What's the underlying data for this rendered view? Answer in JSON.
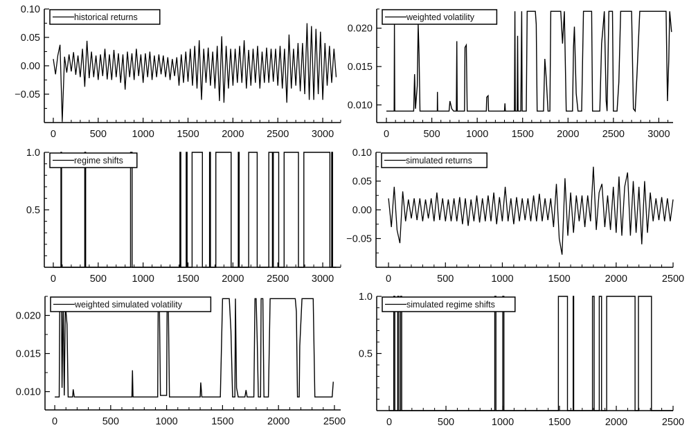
{
  "figure": {
    "line_color": "#000000",
    "background": "#ffffff"
  },
  "chart_data": [
    {
      "type": "line",
      "legend": "historical returns",
      "legend_position": "top-left",
      "xlim": [
        -100,
        3200
      ],
      "ylim": [
        -0.1,
        0.1
      ],
      "xticks": [
        0,
        500,
        1000,
        1500,
        2000,
        2500,
        3000
      ],
      "xtick_labels": [
        "0",
        "500",
        "1000",
        "1500",
        "2000",
        "2500",
        "3000"
      ],
      "x_minor_step": 100,
      "yticks": [
        0.1,
        0.05,
        0.0,
        -0.05
      ],
      "ytick_labels": [
        "0.10",
        "0.05",
        "0.00",
        "−0.05"
      ],
      "y_minor_step": 0.025,
      "grid": false,
      "x_step": 25,
      "values": [
        0.012,
        -0.015,
        0.018,
        0.037,
        -0.098,
        0.016,
        -0.012,
        0.02,
        -0.01,
        0.024,
        -0.016,
        0.018,
        -0.02,
        0.03,
        -0.037,
        0.044,
        -0.022,
        0.025,
        -0.02,
        0.018,
        -0.025,
        0.02,
        -0.018,
        0.03,
        -0.024,
        0.02,
        -0.025,
        0.028,
        -0.02,
        0.022,
        -0.03,
        0.02,
        -0.042,
        0.025,
        -0.02,
        0.022,
        -0.025,
        0.03,
        -0.018,
        0.02,
        -0.03,
        0.022,
        -0.02,
        0.025,
        -0.025,
        0.018,
        -0.02,
        0.02,
        -0.015,
        0.018,
        -0.02,
        0.015,
        -0.025,
        0.012,
        -0.018,
        0.015,
        -0.035,
        0.02,
        -0.03,
        0.025,
        -0.028,
        0.03,
        -0.035,
        0.035,
        -0.04,
        0.045,
        -0.06,
        0.03,
        -0.03,
        0.032,
        -0.035,
        0.025,
        -0.04,
        0.035,
        -0.062,
        0.052,
        -0.065,
        0.035,
        -0.04,
        0.03,
        -0.035,
        0.03,
        -0.03,
        0.035,
        -0.03,
        0.045,
        -0.04,
        0.028,
        -0.035,
        0.03,
        -0.03,
        0.035,
        -0.04,
        0.025,
        -0.03,
        0.032,
        -0.03,
        0.03,
        -0.028,
        0.03,
        -0.035,
        0.035,
        -0.04,
        0.03,
        -0.065,
        0.055,
        -0.04,
        0.03,
        -0.035,
        0.04,
        -0.045,
        0.04,
        -0.05,
        0.075,
        -0.06,
        0.07,
        -0.06,
        0.065,
        -0.05,
        0.06,
        -0.06,
        0.04,
        -0.035,
        0.035,
        -0.03,
        0.03,
        -0.02
      ]
    },
    {
      "type": "line",
      "legend": "weighted volatility",
      "legend_position": "top-left",
      "xlim": [
        -107,
        3157
      ],
      "ylim": [
        0.0077,
        0.0225
      ],
      "xticks": [
        0,
        500,
        1000,
        1500,
        2000,
        2500,
        3000
      ],
      "xtick_labels": [
        "0",
        "500",
        "1000",
        "1500",
        "2000",
        "2500",
        "3000"
      ],
      "x_minor_step": 100,
      "yticks": [
        0.02,
        0.015,
        0.01
      ],
      "ytick_labels": [
        "0.020",
        "0.015",
        "0.010"
      ],
      "y_minor_step": 0.0025,
      "grid": false,
      "points": [
        [
          0,
          0.0092
        ],
        [
          85,
          0.0092
        ],
        [
          88,
          0.0205
        ],
        [
          92,
          0.0092
        ],
        [
          300,
          0.0092
        ],
        [
          310,
          0.014
        ],
        [
          320,
          0.0095
        ],
        [
          340,
          0.0125
        ],
        [
          350,
          0.0205
        ],
        [
          360,
          0.0165
        ],
        [
          370,
          0.0092
        ],
        [
          560,
          0.0092
        ],
        [
          562,
          0.0117
        ],
        [
          565,
          0.0092
        ],
        [
          690,
          0.0092
        ],
        [
          700,
          0.0105
        ],
        [
          720,
          0.0095
        ],
        [
          740,
          0.0092
        ],
        [
          770,
          0.0092
        ],
        [
          775,
          0.0183
        ],
        [
          780,
          0.0092
        ],
        [
          860,
          0.0092
        ],
        [
          865,
          0.0175
        ],
        [
          880,
          0.0178
        ],
        [
          890,
          0.0092
        ],
        [
          1100,
          0.0092
        ],
        [
          1105,
          0.011
        ],
        [
          1120,
          0.0112
        ],
        [
          1125,
          0.0092
        ],
        [
          1300,
          0.0092
        ],
        [
          1305,
          0.0102
        ],
        [
          1310,
          0.0092
        ],
        [
          1410,
          0.0092
        ],
        [
          1415,
          0.0222
        ],
        [
          1420,
          0.0092
        ],
        [
          1440,
          0.0092
        ],
        [
          1445,
          0.019
        ],
        [
          1450,
          0.0092
        ],
        [
          1480,
          0.0092
        ],
        [
          1490,
          0.0222
        ],
        [
          1495,
          0.0092
        ],
        [
          1540,
          0.0092
        ],
        [
          1550,
          0.0222
        ],
        [
          1640,
          0.0222
        ],
        [
          1650,
          0.0205
        ],
        [
          1660,
          0.0092
        ],
        [
          1730,
          0.0092
        ],
        [
          1745,
          0.016
        ],
        [
          1760,
          0.0135
        ],
        [
          1780,
          0.0092
        ],
        [
          1800,
          0.0092
        ],
        [
          1810,
          0.0222
        ],
        [
          1920,
          0.0222
        ],
        [
          1940,
          0.018
        ],
        [
          1960,
          0.0222
        ],
        [
          1980,
          0.0092
        ],
        [
          2050,
          0.0092
        ],
        [
          2060,
          0.0175
        ],
        [
          2070,
          0.0202
        ],
        [
          2090,
          0.0115
        ],
        [
          2110,
          0.0092
        ],
        [
          2150,
          0.0092
        ],
        [
          2170,
          0.0222
        ],
        [
          2260,
          0.0222
        ],
        [
          2270,
          0.0092
        ],
        [
          2350,
          0.0092
        ],
        [
          2370,
          0.018
        ],
        [
          2390,
          0.0207
        ],
        [
          2400,
          0.0222
        ],
        [
          2420,
          0.0105
        ],
        [
          2430,
          0.0092
        ],
        [
          2450,
          0.0222
        ],
        [
          2490,
          0.0222
        ],
        [
          2500,
          0.0092
        ],
        [
          2540,
          0.0092
        ],
        [
          2560,
          0.013
        ],
        [
          2580,
          0.0222
        ],
        [
          2700,
          0.0222
        ],
        [
          2720,
          0.0095
        ],
        [
          2740,
          0.0092
        ],
        [
          2760,
          0.014
        ],
        [
          2790,
          0.0222
        ],
        [
          3080,
          0.0222
        ],
        [
          3095,
          0.0105
        ],
        [
          3110,
          0.0158
        ],
        [
          3120,
          0.0222
        ],
        [
          3140,
          0.0195
        ]
      ]
    },
    {
      "type": "line",
      "legend": "regime shifts",
      "legend_position": "top-left",
      "xlim": [
        -100,
        3200
      ],
      "ylim": [
        0,
        1
      ],
      "xticks": [
        0,
        500,
        1000,
        1500,
        2000,
        2500,
        3000
      ],
      "xtick_labels": [
        "0",
        "500",
        "1000",
        "1500",
        "2000",
        "2500",
        "3000"
      ],
      "x_minor_step": 100,
      "yticks": [
        1.0,
        0.5
      ],
      "ytick_labels": [
        "1.0",
        "0.5"
      ],
      "y_minor_step": 0.1,
      "grid": false,
      "x_end": 3150,
      "high_intervals": [
        [
          85,
          92
        ],
        [
          350,
          360
        ],
        [
          860,
          878
        ],
        [
          1410,
          1420
        ],
        [
          1480,
          1490
        ],
        [
          1545,
          1660
        ],
        [
          1740,
          1750
        ],
        [
          1810,
          1980
        ],
        [
          2060,
          2070
        ],
        [
          2175,
          2270
        ],
        [
          2400,
          2440
        ],
        [
          2450,
          2510
        ],
        [
          2570,
          2730
        ],
        [
          2790,
          3080
        ],
        [
          3100,
          3110
        ]
      ]
    },
    {
      "type": "line",
      "legend": "simulated returns",
      "legend_position": "top-left",
      "xlim": [
        -110,
        2500
      ],
      "ylim": [
        -0.1,
        0.1
      ],
      "xticks": [
        0,
        500,
        1000,
        1500,
        2000,
        2500
      ],
      "xtick_labels": [
        "0",
        "500",
        "1000",
        "1500",
        "2000",
        "2500"
      ],
      "x_minor_step": 100,
      "yticks": [
        0.1,
        0.05,
        0.0,
        -0.05
      ],
      "ytick_labels": [
        "0.10",
        "0.05",
        "0.00",
        "−0.05"
      ],
      "y_minor_step": 0.025,
      "grid": false,
      "x_step": 25,
      "values": [
        0.02,
        -0.03,
        0.04,
        -0.035,
        -0.058,
        0.032,
        -0.02,
        0.018,
        -0.015,
        0.02,
        -0.018,
        0.02,
        -0.02,
        0.018,
        -0.015,
        0.02,
        -0.02,
        0.03,
        -0.018,
        0.02,
        -0.02,
        0.018,
        -0.02,
        0.02,
        -0.02,
        0.022,
        -0.025,
        0.02,
        -0.028,
        0.018,
        -0.02,
        0.025,
        -0.022,
        0.02,
        -0.02,
        0.025,
        -0.02,
        0.03,
        -0.025,
        0.022,
        -0.02,
        0.04,
        -0.02,
        0.02,
        -0.025,
        0.022,
        -0.02,
        0.02,
        -0.018,
        0.02,
        -0.02,
        0.025,
        -0.02,
        0.028,
        -0.02,
        0.02,
        -0.018,
        0.02,
        -0.03,
        0.045,
        -0.05,
        -0.078,
        0.055,
        -0.045,
        0.03,
        -0.04,
        0.025,
        -0.02,
        0.025,
        -0.03,
        0.025,
        -0.02,
        0.075,
        -0.035,
        0.03,
        0.045,
        -0.03,
        0.025,
        -0.035,
        0.04,
        -0.04,
        0.058,
        -0.045,
        0.04,
        0.065,
        -0.045,
        0.05,
        -0.04,
        0.04,
        -0.06,
        0.05,
        -0.04,
        0.03,
        -0.02,
        0.02,
        -0.018,
        0.022,
        -0.02,
        0.02,
        -0.02,
        0.018
      ]
    },
    {
      "type": "line",
      "legend": "weighted simulated volatility",
      "legend_position": "top-left",
      "xlim": [
        -87,
        2556
      ],
      "ylim": [
        0.0076,
        0.0225
      ],
      "xticks": [
        0,
        500,
        1000,
        1500,
        2000,
        2500
      ],
      "xtick_labels": [
        "0",
        "500",
        "1000",
        "1500",
        "2000",
        "2500"
      ],
      "x_minor_step": 100,
      "yticks": [
        0.02,
        0.015,
        0.01
      ],
      "ytick_labels": [
        "0.020",
        "0.015",
        "0.010"
      ],
      "y_minor_step": 0.0025,
      "grid": false,
      "points": [
        [
          0,
          0.0093
        ],
        [
          40,
          0.0093
        ],
        [
          45,
          0.0222
        ],
        [
          60,
          0.0222
        ],
        [
          65,
          0.0105
        ],
        [
          75,
          0.0222
        ],
        [
          85,
          0.0095
        ],
        [
          95,
          0.0215
        ],
        [
          110,
          0.0188
        ],
        [
          120,
          0.0093
        ],
        [
          160,
          0.0093
        ],
        [
          165,
          0.0103
        ],
        [
          175,
          0.0093
        ],
        [
          690,
          0.0093
        ],
        [
          695,
          0.0128
        ],
        [
          700,
          0.0093
        ],
        [
          920,
          0.0093
        ],
        [
          925,
          0.0222
        ],
        [
          935,
          0.0222
        ],
        [
          945,
          0.0095
        ],
        [
          1000,
          0.0095
        ],
        [
          1005,
          0.0222
        ],
        [
          1015,
          0.0222
        ],
        [
          1025,
          0.0093
        ],
        [
          1300,
          0.0093
        ],
        [
          1305,
          0.0112
        ],
        [
          1315,
          0.0093
        ],
        [
          1480,
          0.0093
        ],
        [
          1500,
          0.0222
        ],
        [
          1560,
          0.0222
        ],
        [
          1575,
          0.018
        ],
        [
          1590,
          0.0093
        ],
        [
          1610,
          0.0093
        ],
        [
          1615,
          0.0222
        ],
        [
          1625,
          0.0105
        ],
        [
          1640,
          0.0093
        ],
        [
          1700,
          0.0093
        ],
        [
          1710,
          0.0102
        ],
        [
          1720,
          0.0093
        ],
        [
          1780,
          0.0093
        ],
        [
          1790,
          0.0222
        ],
        [
          1800,
          0.0222
        ],
        [
          1810,
          0.0165
        ],
        [
          1820,
          0.0093
        ],
        [
          1840,
          0.0093
        ],
        [
          1845,
          0.0222
        ],
        [
          1860,
          0.0222
        ],
        [
          1870,
          0.0093
        ],
        [
          1910,
          0.0093
        ],
        [
          1925,
          0.0222
        ],
        [
          2150,
          0.0222
        ],
        [
          2160,
          0.0205
        ],
        [
          2170,
          0.0093
        ],
        [
          2185,
          0.0093
        ],
        [
          2190,
          0.016
        ],
        [
          2210,
          0.0222
        ],
        [
          2310,
          0.0222
        ],
        [
          2325,
          0.0093
        ],
        [
          2480,
          0.0093
        ],
        [
          2490,
          0.0113
        ]
      ]
    },
    {
      "type": "line",
      "legend": "simulated regime shifts",
      "legend_position": "top-left",
      "xlim": [
        -110,
        2500
      ],
      "ylim": [
        0,
        1
      ],
      "xticks": [
        0,
        500,
        1000,
        1500,
        2000,
        2500
      ],
      "xtick_labels": [
        "0",
        "500",
        "1000",
        "1500",
        "2000",
        "2500"
      ],
      "x_minor_step": 100,
      "yticks": [
        1.0,
        0.5
      ],
      "ytick_labels": [
        "1.0",
        "0.5"
      ],
      "y_minor_step": 0.1,
      "grid": false,
      "x_end": 2500,
      "high_intervals": [
        [
          40,
          50
        ],
        [
          75,
          85
        ],
        [
          100,
          110
        ],
        [
          930,
          940
        ],
        [
          1000,
          1010
        ],
        [
          1490,
          1570
        ],
        [
          1620,
          1625
        ],
        [
          1790,
          1805
        ],
        [
          1850,
          1870
        ],
        [
          1915,
          2165
        ],
        [
          2195,
          2310
        ]
      ]
    }
  ]
}
